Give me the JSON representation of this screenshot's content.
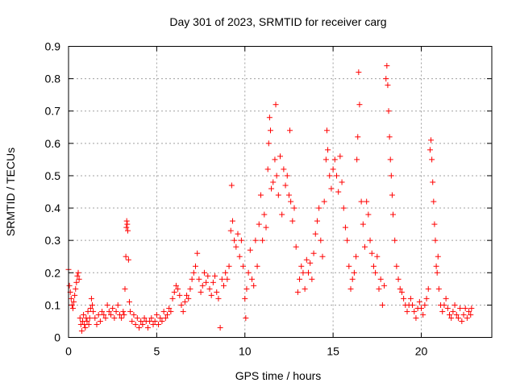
{
  "chart_data": {
    "type": "scatter",
    "title": "Day 301 of 2023, SRMTID for receiver carg",
    "xlabel": "GPS time / hours",
    "ylabel": "SRMTID / TECUs",
    "xlim": [
      0,
      24
    ],
    "ylim": [
      0,
      0.9
    ],
    "xticks": [
      0,
      5,
      10,
      15,
      20
    ],
    "yticks": [
      0,
      0.1,
      0.2,
      0.3,
      0.4,
      0.5,
      0.6,
      0.7,
      0.8,
      0.9
    ],
    "grid": true,
    "marker": "plus",
    "color": "#ff0000",
    "series": [
      {
        "name": "carg",
        "points": [
          [
            0.0,
            0.21
          ],
          [
            0.05,
            0.16
          ],
          [
            0.1,
            0.14
          ],
          [
            0.15,
            0.12
          ],
          [
            0.2,
            0.1
          ],
          [
            0.25,
            0.09
          ],
          [
            0.3,
            0.11
          ],
          [
            0.35,
            0.13
          ],
          [
            0.4,
            0.15
          ],
          [
            0.45,
            0.17
          ],
          [
            0.5,
            0.19
          ],
          [
            0.55,
            0.2
          ],
          [
            0.6,
            0.18
          ],
          [
            0.65,
            0.06
          ],
          [
            0.7,
            0.04
          ],
          [
            0.75,
            0.02
          ],
          [
            0.8,
            0.05
          ],
          [
            0.85,
            0.07
          ],
          [
            0.9,
            0.04
          ],
          [
            0.95,
            0.03
          ],
          [
            1.0,
            0.06
          ],
          [
            1.05,
            0.05
          ],
          [
            1.1,
            0.08
          ],
          [
            1.15,
            0.04
          ],
          [
            1.2,
            0.06
          ],
          [
            1.25,
            0.09
          ],
          [
            1.3,
            0.12
          ],
          [
            1.35,
            0.1
          ],
          [
            1.4,
            0.08
          ],
          [
            1.5,
            0.06
          ],
          [
            1.6,
            0.04
          ],
          [
            1.7,
            0.07
          ],
          [
            1.8,
            0.05
          ],
          [
            1.9,
            0.08
          ],
          [
            2.0,
            0.07
          ],
          [
            2.1,
            0.06
          ],
          [
            2.2,
            0.1
          ],
          [
            2.3,
            0.08
          ],
          [
            2.4,
            0.07
          ],
          [
            2.5,
            0.09
          ],
          [
            2.6,
            0.06
          ],
          [
            2.7,
            0.08
          ],
          [
            2.8,
            0.1
          ],
          [
            2.9,
            0.07
          ],
          [
            3.0,
            0.06
          ],
          [
            3.1,
            0.08
          ],
          [
            3.15,
            0.07
          ],
          [
            3.2,
            0.15
          ],
          [
            3.25,
            0.25
          ],
          [
            3.28,
            0.34
          ],
          [
            3.3,
            0.36
          ],
          [
            3.33,
            0.35
          ],
          [
            3.36,
            0.33
          ],
          [
            3.4,
            0.24
          ],
          [
            3.45,
            0.11
          ],
          [
            3.5,
            0.08
          ],
          [
            3.6,
            0.05
          ],
          [
            3.7,
            0.07
          ],
          [
            3.8,
            0.04
          ],
          [
            3.9,
            0.06
          ],
          [
            4.0,
            0.03
          ],
          [
            4.1,
            0.05
          ],
          [
            4.2,
            0.04
          ],
          [
            4.3,
            0.06
          ],
          [
            4.4,
            0.05
          ],
          [
            4.5,
            0.03
          ],
          [
            4.6,
            0.05
          ],
          [
            4.7,
            0.06
          ],
          [
            4.8,
            0.04
          ],
          [
            4.9,
            0.05
          ],
          [
            5.0,
            0.07
          ],
          [
            5.1,
            0.04
          ],
          [
            5.2,
            0.06
          ],
          [
            5.3,
            0.05
          ],
          [
            5.4,
            0.08
          ],
          [
            5.5,
            0.06
          ],
          [
            5.6,
            0.07
          ],
          [
            5.7,
            0.09
          ],
          [
            5.8,
            0.08
          ],
          [
            5.9,
            0.12
          ],
          [
            6.0,
            0.14
          ],
          [
            6.1,
            0.16
          ],
          [
            6.2,
            0.15
          ],
          [
            6.3,
            0.13
          ],
          [
            6.4,
            0.1
          ],
          [
            6.5,
            0.08
          ],
          [
            6.6,
            0.11
          ],
          [
            6.7,
            0.13
          ],
          [
            6.8,
            0.12
          ],
          [
            6.9,
            0.15
          ],
          [
            7.0,
            0.18
          ],
          [
            7.1,
            0.2
          ],
          [
            7.2,
            0.22
          ],
          [
            7.3,
            0.26
          ],
          [
            7.4,
            0.18
          ],
          [
            7.5,
            0.14
          ],
          [
            7.6,
            0.16
          ],
          [
            7.7,
            0.2
          ],
          [
            7.8,
            0.17
          ],
          [
            7.9,
            0.19
          ],
          [
            8.0,
            0.15
          ],
          [
            8.1,
            0.13
          ],
          [
            8.2,
            0.17
          ],
          [
            8.3,
            0.19
          ],
          [
            8.4,
            0.14
          ],
          [
            8.5,
            0.12
          ],
          [
            8.6,
            0.03
          ],
          [
            8.7,
            0.18
          ],
          [
            8.8,
            0.16
          ],
          [
            8.9,
            0.2
          ],
          [
            9.0,
            0.18
          ],
          [
            9.1,
            0.22
          ],
          [
            9.2,
            0.33
          ],
          [
            9.25,
            0.47
          ],
          [
            9.3,
            0.36
          ],
          [
            9.4,
            0.3
          ],
          [
            9.5,
            0.28
          ],
          [
            9.6,
            0.32
          ],
          [
            9.7,
            0.25
          ],
          [
            9.8,
            0.3
          ],
          [
            9.9,
            0.22
          ],
          [
            10.0,
            0.12
          ],
          [
            10.05,
            0.06
          ],
          [
            10.1,
            0.15
          ],
          [
            10.2,
            0.2
          ],
          [
            10.3,
            0.27
          ],
          [
            10.4,
            0.18
          ],
          [
            10.5,
            0.16
          ],
          [
            10.6,
            0.3
          ],
          [
            10.7,
            0.22
          ],
          [
            10.8,
            0.35
          ],
          [
            10.9,
            0.44
          ],
          [
            11.0,
            0.3
          ],
          [
            11.1,
            0.38
          ],
          [
            11.2,
            0.34
          ],
          [
            11.3,
            0.52
          ],
          [
            11.35,
            0.6
          ],
          [
            11.4,
            0.68
          ],
          [
            11.45,
            0.64
          ],
          [
            11.5,
            0.46
          ],
          [
            11.6,
            0.48
          ],
          [
            11.7,
            0.55
          ],
          [
            11.75,
            0.72
          ],
          [
            11.8,
            0.5
          ],
          [
            11.9,
            0.44
          ],
          [
            12.0,
            0.56
          ],
          [
            12.1,
            0.38
          ],
          [
            12.2,
            0.52
          ],
          [
            12.3,
            0.47
          ],
          [
            12.4,
            0.5
          ],
          [
            12.5,
            0.44
          ],
          [
            12.55,
            0.64
          ],
          [
            12.6,
            0.42
          ],
          [
            12.7,
            0.36
          ],
          [
            12.8,
            0.4
          ],
          [
            12.9,
            0.28
          ],
          [
            13.0,
            0.14
          ],
          [
            13.1,
            0.18
          ],
          [
            13.2,
            0.22
          ],
          [
            13.3,
            0.2
          ],
          [
            13.4,
            0.15
          ],
          [
            13.5,
            0.24
          ],
          [
            13.6,
            0.2
          ],
          [
            13.7,
            0.23
          ],
          [
            13.8,
            0.18
          ],
          [
            13.9,
            0.26
          ],
          [
            14.0,
            0.32
          ],
          [
            14.1,
            0.36
          ],
          [
            14.2,
            0.4
          ],
          [
            14.3,
            0.3
          ],
          [
            14.4,
            0.25
          ],
          [
            14.5,
            0.42
          ],
          [
            14.6,
            0.55
          ],
          [
            14.65,
            0.64
          ],
          [
            14.7,
            0.58
          ],
          [
            14.8,
            0.5
          ],
          [
            14.9,
            0.46
          ],
          [
            15.0,
            0.52
          ],
          [
            15.1,
            0.55
          ],
          [
            15.2,
            0.5
          ],
          [
            15.3,
            0.45
          ],
          [
            15.4,
            0.56
          ],
          [
            15.5,
            0.48
          ],
          [
            15.6,
            0.4
          ],
          [
            15.7,
            0.34
          ],
          [
            15.8,
            0.3
          ],
          [
            15.9,
            0.22
          ],
          [
            16.0,
            0.15
          ],
          [
            16.1,
            0.18
          ],
          [
            16.2,
            0.2
          ],
          [
            16.3,
            0.25
          ],
          [
            16.35,
            0.55
          ],
          [
            16.4,
            0.62
          ],
          [
            16.45,
            0.82
          ],
          [
            16.5,
            0.72
          ],
          [
            16.6,
            0.42
          ],
          [
            16.7,
            0.35
          ],
          [
            16.8,
            0.28
          ],
          [
            16.9,
            0.42
          ],
          [
            17.0,
            0.38
          ],
          [
            17.1,
            0.3
          ],
          [
            17.2,
            0.26
          ],
          [
            17.3,
            0.22
          ],
          [
            17.4,
            0.2
          ],
          [
            17.5,
            0.25
          ],
          [
            17.6,
            0.15
          ],
          [
            17.7,
            0.18
          ],
          [
            17.8,
            0.1
          ],
          [
            17.9,
            0.16
          ],
          [
            18.0,
            0.8
          ],
          [
            18.05,
            0.84
          ],
          [
            18.1,
            0.78
          ],
          [
            18.15,
            0.7
          ],
          [
            18.2,
            0.62
          ],
          [
            18.25,
            0.55
          ],
          [
            18.3,
            0.5
          ],
          [
            18.35,
            0.44
          ],
          [
            18.4,
            0.38
          ],
          [
            18.5,
            0.3
          ],
          [
            18.6,
            0.22
          ],
          [
            18.7,
            0.18
          ],
          [
            18.8,
            0.15
          ],
          [
            18.9,
            0.14
          ],
          [
            19.0,
            0.12
          ],
          [
            19.1,
            0.1
          ],
          [
            19.2,
            0.08
          ],
          [
            19.3,
            0.1
          ],
          [
            19.4,
            0.12
          ],
          [
            19.5,
            0.1
          ],
          [
            19.6,
            0.08
          ],
          [
            19.7,
            0.06
          ],
          [
            19.8,
            0.09
          ],
          [
            19.9,
            0.11
          ],
          [
            20.0,
            0.09
          ],
          [
            20.1,
            0.07
          ],
          [
            20.2,
            0.1
          ],
          [
            20.3,
            0.12
          ],
          [
            20.4,
            0.15
          ],
          [
            20.5,
            0.58
          ],
          [
            20.55,
            0.61
          ],
          [
            20.6,
            0.55
          ],
          [
            20.65,
            0.48
          ],
          [
            20.7,
            0.42
          ],
          [
            20.75,
            0.35
          ],
          [
            20.8,
            0.3
          ],
          [
            20.85,
            0.22
          ],
          [
            20.9,
            0.2
          ],
          [
            20.95,
            0.25
          ],
          [
            21.0,
            0.15
          ],
          [
            21.1,
            0.1
          ],
          [
            21.2,
            0.08
          ],
          [
            21.3,
            0.1
          ],
          [
            21.4,
            0.12
          ],
          [
            21.5,
            0.09
          ],
          [
            21.6,
            0.07
          ],
          [
            21.7,
            0.06
          ],
          [
            21.8,
            0.08
          ],
          [
            21.9,
            0.1
          ],
          [
            22.0,
            0.07
          ],
          [
            22.1,
            0.06
          ],
          [
            22.2,
            0.09
          ],
          [
            22.3,
            0.05
          ],
          [
            22.4,
            0.07
          ],
          [
            22.5,
            0.09
          ],
          [
            22.6,
            0.06
          ],
          [
            22.7,
            0.08
          ],
          [
            22.8,
            0.07
          ],
          [
            22.85,
            0.09
          ]
        ]
      }
    ]
  }
}
